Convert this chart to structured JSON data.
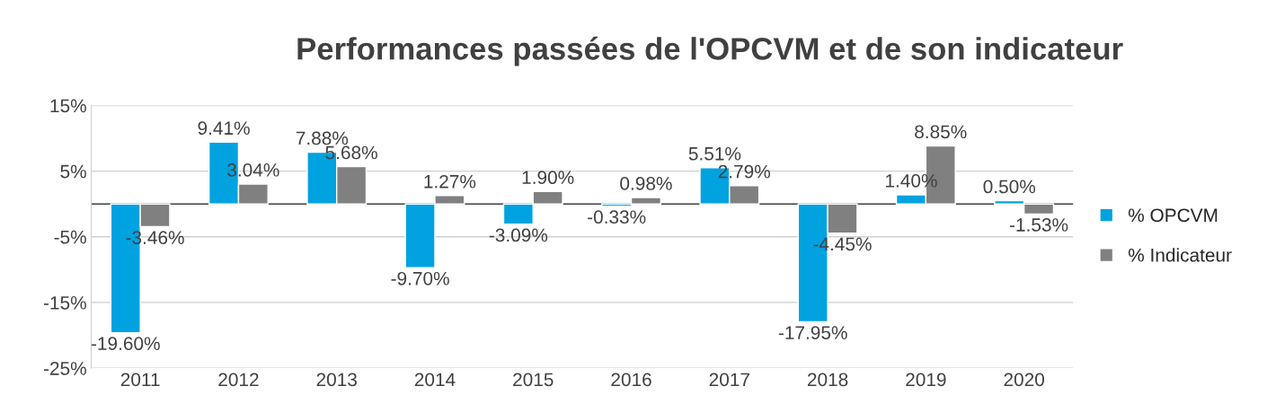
{
  "chart_data": {
    "type": "bar",
    "title": "Performances passées de l'OPCVM et de son indicateur",
    "categories": [
      "2011",
      "2012",
      "2013",
      "2014",
      "2015",
      "2016",
      "2017",
      "2018",
      "2019",
      "2020"
    ],
    "series": [
      {
        "name": "% OPCVM",
        "color": "#00a2e0",
        "values": [
          -19.6,
          9.41,
          7.88,
          -9.7,
          -3.09,
          -0.33,
          5.51,
          -17.95,
          1.4,
          0.5
        ],
        "value_labels": [
          "-19.60%",
          "9.41%",
          "7.88%",
          "-9.70%",
          "-3.09%",
          "-0.33%",
          "5.51%",
          "-17.95%",
          "1.40%",
          "0.50%"
        ]
      },
      {
        "name": "% Indicateur",
        "color": "#808080",
        "values": [
          -3.46,
          3.04,
          5.68,
          1.27,
          1.9,
          0.98,
          2.79,
          -4.45,
          8.85,
          -1.53
        ],
        "value_labels": [
          "-3.46%",
          "3.04%",
          "5.68%",
          "1.27%",
          "1.90%",
          "0.98%",
          "2.79%",
          "-4.45%",
          "8.85%",
          "-1.53%"
        ]
      }
    ],
    "ylim": [
      -25,
      15
    ],
    "yticks": [
      {
        "value": -25,
        "label": "-25%"
      },
      {
        "value": -15,
        "label": "-15%"
      },
      {
        "value": -5,
        "label": "-5%"
      },
      {
        "value": 5,
        "label": "5%"
      },
      {
        "value": 15,
        "label": "15%"
      }
    ],
    "grid": "y",
    "legend": "right"
  }
}
